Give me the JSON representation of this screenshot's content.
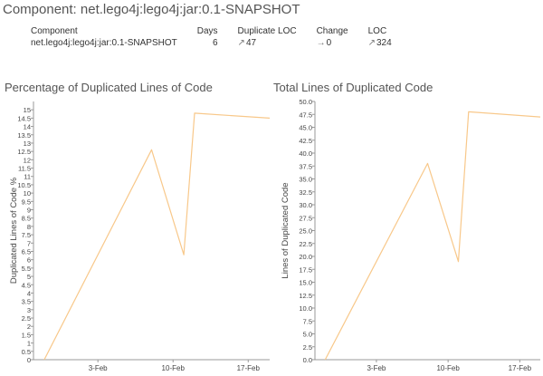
{
  "page": {
    "title": "Component: net.lego4j:lego4j:jar:0.1-SNAPSHOT"
  },
  "summary": {
    "headers": [
      "Component",
      "Days",
      "Duplicate LOC",
      "Change",
      "LOC"
    ],
    "row": {
      "component": "net.lego4j:lego4j:jar:0.1-SNAPSHOT",
      "days": "6",
      "duplicate_loc": "47",
      "change": "0",
      "loc": "324",
      "icons": {
        "duplicate_loc": "trend-up-icon",
        "change": "trend-flat-icon",
        "loc": "trend-up-icon"
      }
    }
  },
  "chart_data": [
    {
      "type": "line",
      "title": "Percentage of Duplicated Lines of Code",
      "xlabel": "",
      "ylabel": "Duplicated Lines of Code %",
      "x_ticks": [
        "3-Feb",
        "10-Feb",
        "17-Feb"
      ],
      "x_tick_positions": [
        "2014-02-03",
        "2014-02-10",
        "2014-02-17"
      ],
      "xlim": [
        "2014-01-28",
        "2014-02-19"
      ],
      "ylim": [
        0,
        15.5
      ],
      "y_ticks": [
        0,
        0.5,
        1,
        1.5,
        2,
        2.5,
        3,
        3.5,
        4,
        4.5,
        5,
        5.5,
        6,
        6.5,
        7,
        7.5,
        8,
        8.5,
        9,
        9.5,
        10,
        10.5,
        11,
        11.5,
        12,
        12.5,
        13,
        13.5,
        14,
        14.5,
        15
      ],
      "y_tick_labels": [
        "0",
        "0.5",
        "1",
        "1.5",
        "2",
        "2.5",
        "3",
        "3.5",
        "4",
        "4.5",
        "5",
        "5.5",
        "6",
        "6.5",
        "7",
        "7.5",
        "8",
        "8.5",
        "9",
        "9.5",
        "10",
        "10.5",
        "11",
        "11.5",
        "12",
        "12.5",
        "13",
        "13.5",
        "14",
        "14.5",
        "15"
      ],
      "grid": false,
      "color": "#f8c88a",
      "series": [
        {
          "x": [
            "2014-01-29",
            "2014-02-08",
            "2014-02-11",
            "2014-02-12",
            "2014-02-19"
          ],
          "values": [
            0,
            12.6,
            6.3,
            14.8,
            14.5
          ]
        }
      ]
    },
    {
      "type": "line",
      "title": "Total Lines of Duplicated Code",
      "xlabel": "",
      "ylabel": "Lines of Duplicated Code",
      "x_ticks": [
        "3-Feb",
        "10-Feb",
        "17-Feb"
      ],
      "x_tick_positions": [
        "2014-02-03",
        "2014-02-10",
        "2014-02-17"
      ],
      "xlim": [
        "2014-01-28",
        "2014-02-19"
      ],
      "ylim": [
        0,
        50
      ],
      "y_ticks": [
        0,
        2.5,
        5,
        7.5,
        10,
        12.5,
        15,
        17.5,
        20,
        22.5,
        25,
        27.5,
        30,
        32.5,
        35,
        37.5,
        40,
        42.5,
        45,
        47.5,
        50
      ],
      "y_tick_labels": [
        "0.0",
        "2.5",
        "5.0",
        "7.5",
        "10.0",
        "12.5",
        "15.0",
        "17.5",
        "20.0",
        "22.5",
        "25.0",
        "27.5",
        "30.0",
        "32.5",
        "35.0",
        "37.5",
        "40.0",
        "42.5",
        "45.0",
        "47.5",
        "50.0"
      ],
      "grid": false,
      "color": "#f8c88a",
      "series": [
        {
          "x": [
            "2014-01-29",
            "2014-02-08",
            "2014-02-11",
            "2014-02-12",
            "2014-02-19"
          ],
          "values": [
            0,
            38,
            19,
            48,
            47
          ]
        }
      ]
    }
  ]
}
